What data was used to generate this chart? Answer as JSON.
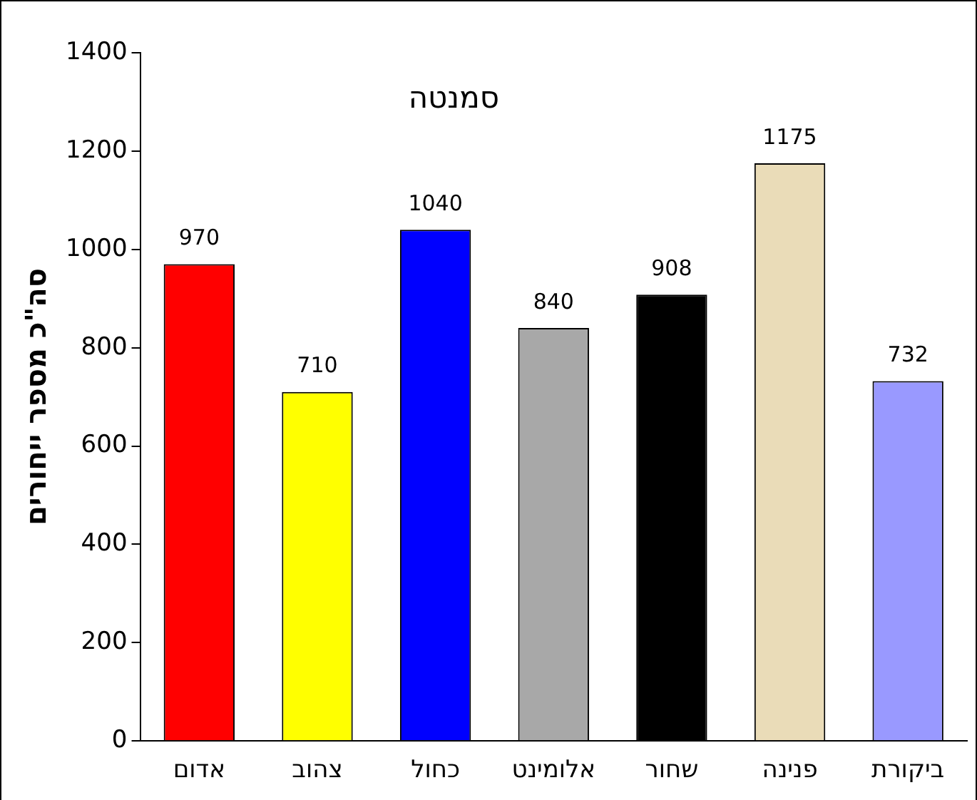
{
  "chart_data": {
    "type": "bar",
    "title": "סמנטה",
    "ylabel": "סה\"כ מספר ייחורים",
    "categories": [
      "אדום",
      "צהוב",
      "כחול",
      "אלומינט",
      "שחור",
      "פנינה",
      "ביקורת"
    ],
    "values": [
      970,
      710,
      1040,
      840,
      908,
      1175,
      732
    ],
    "colors": [
      "#ff0000",
      "#ffff00",
      "#0000ff",
      "#a8a8a8",
      "#000000",
      "#eadcb8",
      "#9999ff"
    ],
    "ylim": [
      0,
      1400
    ],
    "yticks": [
      0,
      200,
      400,
      600,
      800,
      1000,
      1200,
      1400
    ],
    "grid": false,
    "legend": false,
    "data_labels": true
  }
}
